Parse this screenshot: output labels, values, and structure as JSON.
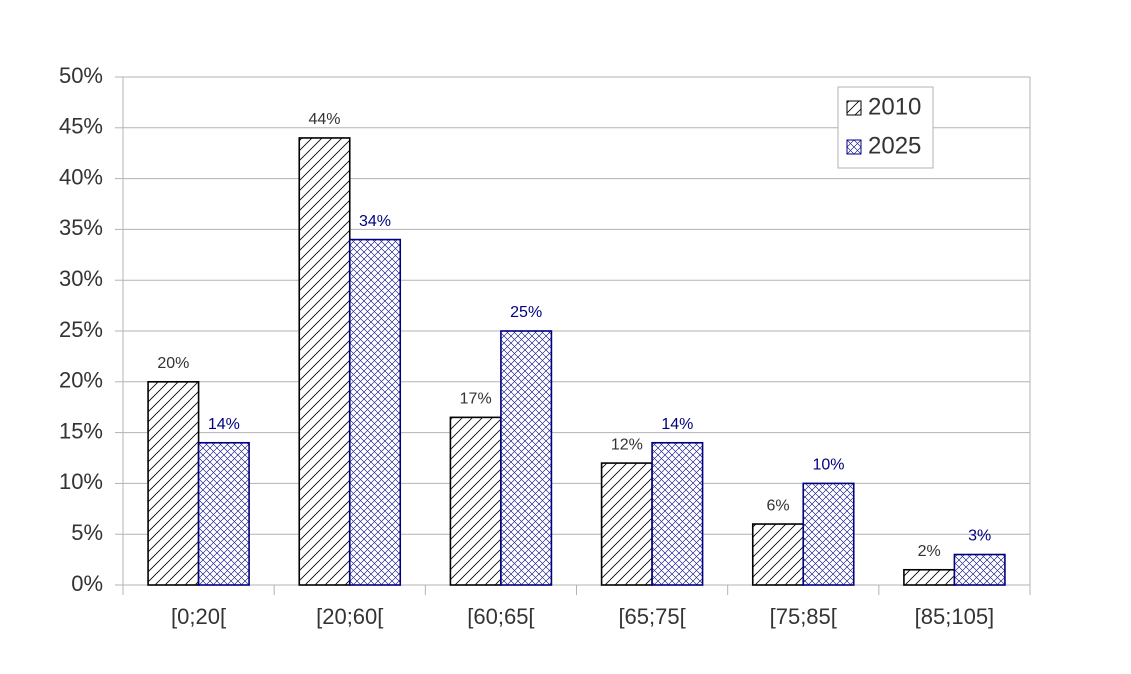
{
  "chart_data": {
    "type": "bar",
    "categories": [
      "[0;20[",
      "[20;60[",
      "[60;65[",
      "[65;75[",
      "[75;85[",
      "[85;105]"
    ],
    "series": [
      {
        "name": "2010",
        "color": "#000000",
        "label_color": "#333333",
        "pattern": "diagonal",
        "values": [
          20,
          44,
          16.5,
          12,
          6,
          1.5
        ],
        "value_labels": [
          "20%",
          "44%",
          "17%",
          "12%",
          "6%",
          "2%"
        ]
      },
      {
        "name": "2025",
        "color": "#000080",
        "label_color": "#000080",
        "pattern": "crosshatch",
        "values": [
          14,
          34,
          25,
          14,
          10,
          3
        ],
        "value_labels": [
          "14%",
          "34%",
          "25%",
          "14%",
          "10%",
          "3%"
        ]
      }
    ],
    "ylim": [
      0,
      50
    ],
    "yticks": [
      {
        "value": 0,
        "label": "0%"
      },
      {
        "value": 5,
        "label": "5%"
      },
      {
        "value": 10,
        "label": "10%"
      },
      {
        "value": 15,
        "label": "15%"
      },
      {
        "value": 20,
        "label": "20%"
      },
      {
        "value": 25,
        "label": "25%"
      },
      {
        "value": 30,
        "label": "30%"
      },
      {
        "value": 35,
        "label": "35%"
      },
      {
        "value": 40,
        "label": "40%"
      },
      {
        "value": 45,
        "label": "45%"
      },
      {
        "value": 50,
        "label": "50%"
      }
    ],
    "grid": true,
    "legend": "upper right"
  }
}
